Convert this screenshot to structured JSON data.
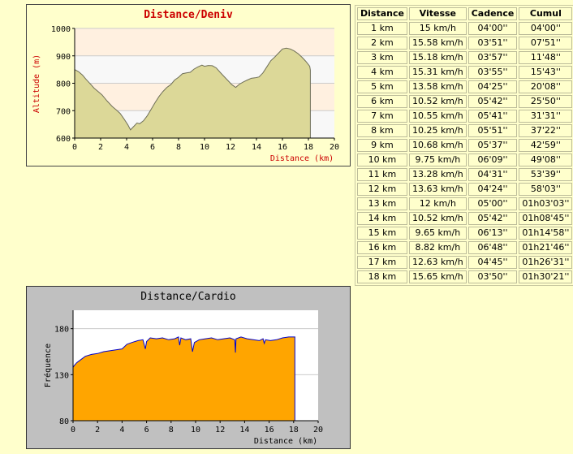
{
  "chart_data": [
    {
      "type": "area",
      "title": "Distance/Deniv",
      "xlabel": "Distance (km)",
      "ylabel": "Altitude (m)",
      "xlim": [
        0,
        20
      ],
      "ylim": [
        600,
        1000
      ],
      "xticks": [
        "0",
        "2",
        "4",
        "6",
        "8",
        "10",
        "12",
        "14",
        "16",
        "18",
        "20"
      ],
      "yticks": [
        "600",
        "700",
        "800",
        "900",
        "1000"
      ],
      "grid": true,
      "colors": {
        "fill": "#dcd898",
        "line": "#6f6f58",
        "title": "#cc0000",
        "axis_label": "#cc0000",
        "band_a": "#fff0e0",
        "band_b": "#f8f8f8"
      },
      "x": [
        0,
        0.3,
        0.6,
        0.9,
        1.2,
        1.5,
        1.8,
        2.1,
        2.5,
        2.9,
        3.2,
        3.5,
        3.8,
        4.1,
        4.3,
        4.5,
        4.8,
        5.0,
        5.3,
        5.6,
        5.9,
        6.2,
        6.5,
        6.8,
        7.1,
        7.4,
        7.7,
        8.0,
        8.3,
        8.6,
        8.9,
        9.2,
        9.5,
        9.8,
        10.0,
        10.3,
        10.6,
        10.9,
        11.2,
        11.5,
        11.8,
        12.1,
        12.4,
        12.7,
        13.0,
        13.3,
        13.6,
        13.9,
        14.2,
        14.5,
        14.8,
        15.1,
        15.4,
        15.7,
        16.0,
        16.3,
        16.6,
        16.9,
        17.2,
        17.5,
        17.8,
        18.1,
        18.15
      ],
      "y": [
        850,
        842,
        830,
        813,
        798,
        782,
        770,
        758,
        735,
        715,
        703,
        690,
        670,
        648,
        630,
        640,
        655,
        652,
        663,
        682,
        706,
        730,
        752,
        770,
        785,
        795,
        812,
        822,
        835,
        838,
        840,
        852,
        860,
        866,
        862,
        865,
        864,
        856,
        840,
        825,
        810,
        795,
        785,
        797,
        805,
        812,
        818,
        820,
        823,
        838,
        860,
        882,
        895,
        910,
        925,
        928,
        925,
        918,
        908,
        895,
        880,
        862,
        848
      ]
    },
    {
      "type": "area",
      "title": "Distance/Cardio",
      "xlabel": "Distance (km)",
      "ylabel": "Fréquence",
      "xlim": [
        0,
        20
      ],
      "ylim": [
        80,
        200
      ],
      "xticks": [
        "0",
        "2",
        "4",
        "6",
        "8",
        "10",
        "12",
        "14",
        "16",
        "18",
        "20"
      ],
      "yticks": [
        "80",
        "130",
        "180"
      ],
      "grid": true,
      "colors": {
        "fill": "#ffa500",
        "line": "#0000cc",
        "title": "#000000",
        "bg": "#c0c0c0"
      },
      "x": [
        0,
        0.1,
        0.3,
        0.6,
        1.0,
        1.5,
        2.0,
        2.5,
        3.0,
        3.5,
        4.0,
        4.4,
        4.8,
        5.3,
        5.7,
        5.9,
        6.0,
        6.3,
        6.8,
        7.3,
        7.8,
        8.3,
        8.6,
        8.7,
        8.8,
        9.2,
        9.6,
        9.75,
        9.9,
        10.3,
        10.8,
        11.3,
        11.8,
        12.3,
        12.8,
        13.2,
        13.25,
        13.3,
        13.7,
        14.2,
        14.7,
        15.2,
        15.5,
        15.6,
        15.7,
        16.1,
        16.6,
        17.1,
        17.6,
        18.0,
        18.1
      ],
      "y": [
        138,
        140,
        143,
        146,
        150,
        152,
        153,
        155,
        156,
        157,
        158,
        163,
        165,
        167,
        168,
        158,
        166,
        170,
        169,
        170,
        168,
        169,
        171,
        162,
        170,
        168,
        169,
        155,
        165,
        168,
        169,
        170,
        168,
        169,
        170,
        168,
        154,
        169,
        171,
        169,
        168,
        167,
        169,
        164,
        168,
        167,
        168,
        170,
        171,
        171,
        171
      ]
    }
  ],
  "table": {
    "headers": [
      "Distance",
      "Vitesse",
      "Cadence",
      "Cumul"
    ],
    "rows": [
      [
        "1 km",
        "15 km/h",
        "04'00''",
        "04'00''"
      ],
      [
        "2 km",
        "15.58 km/h",
        "03'51''",
        "07'51''"
      ],
      [
        "3 km",
        "15.18 km/h",
        "03'57''",
        "11'48''"
      ],
      [
        "4 km",
        "15.31 km/h",
        "03'55''",
        "15'43''"
      ],
      [
        "5 km",
        "13.58 km/h",
        "04'25''",
        "20'08''"
      ],
      [
        "6 km",
        "10.52 km/h",
        "05'42''",
        "25'50''"
      ],
      [
        "7 km",
        "10.55 km/h",
        "05'41''",
        "31'31''"
      ],
      [
        "8 km",
        "10.25 km/h",
        "05'51''",
        "37'22''"
      ],
      [
        "9 km",
        "10.68 km/h",
        "05'37''",
        "42'59''"
      ],
      [
        "10 km",
        "9.75 km/h",
        "06'09''",
        "49'08''"
      ],
      [
        "11 km",
        "13.28 km/h",
        "04'31''",
        "53'39''"
      ],
      [
        "12 km",
        "13.63 km/h",
        "04'24''",
        "58'03''"
      ],
      [
        "13 km",
        "12 km/h",
        "05'00''",
        "01h03'03''"
      ],
      [
        "14 km",
        "10.52 km/h",
        "05'42''",
        "01h08'45''"
      ],
      [
        "15 km",
        "9.65 km/h",
        "06'13''",
        "01h14'58''"
      ],
      [
        "16 km",
        "8.82 km/h",
        "06'48''",
        "01h21'46''"
      ],
      [
        "17 km",
        "12.63 km/h",
        "04'45''",
        "01h26'31''"
      ],
      [
        "18 km",
        "15.65 km/h",
        "03'50''",
        "01h30'21''"
      ]
    ]
  }
}
